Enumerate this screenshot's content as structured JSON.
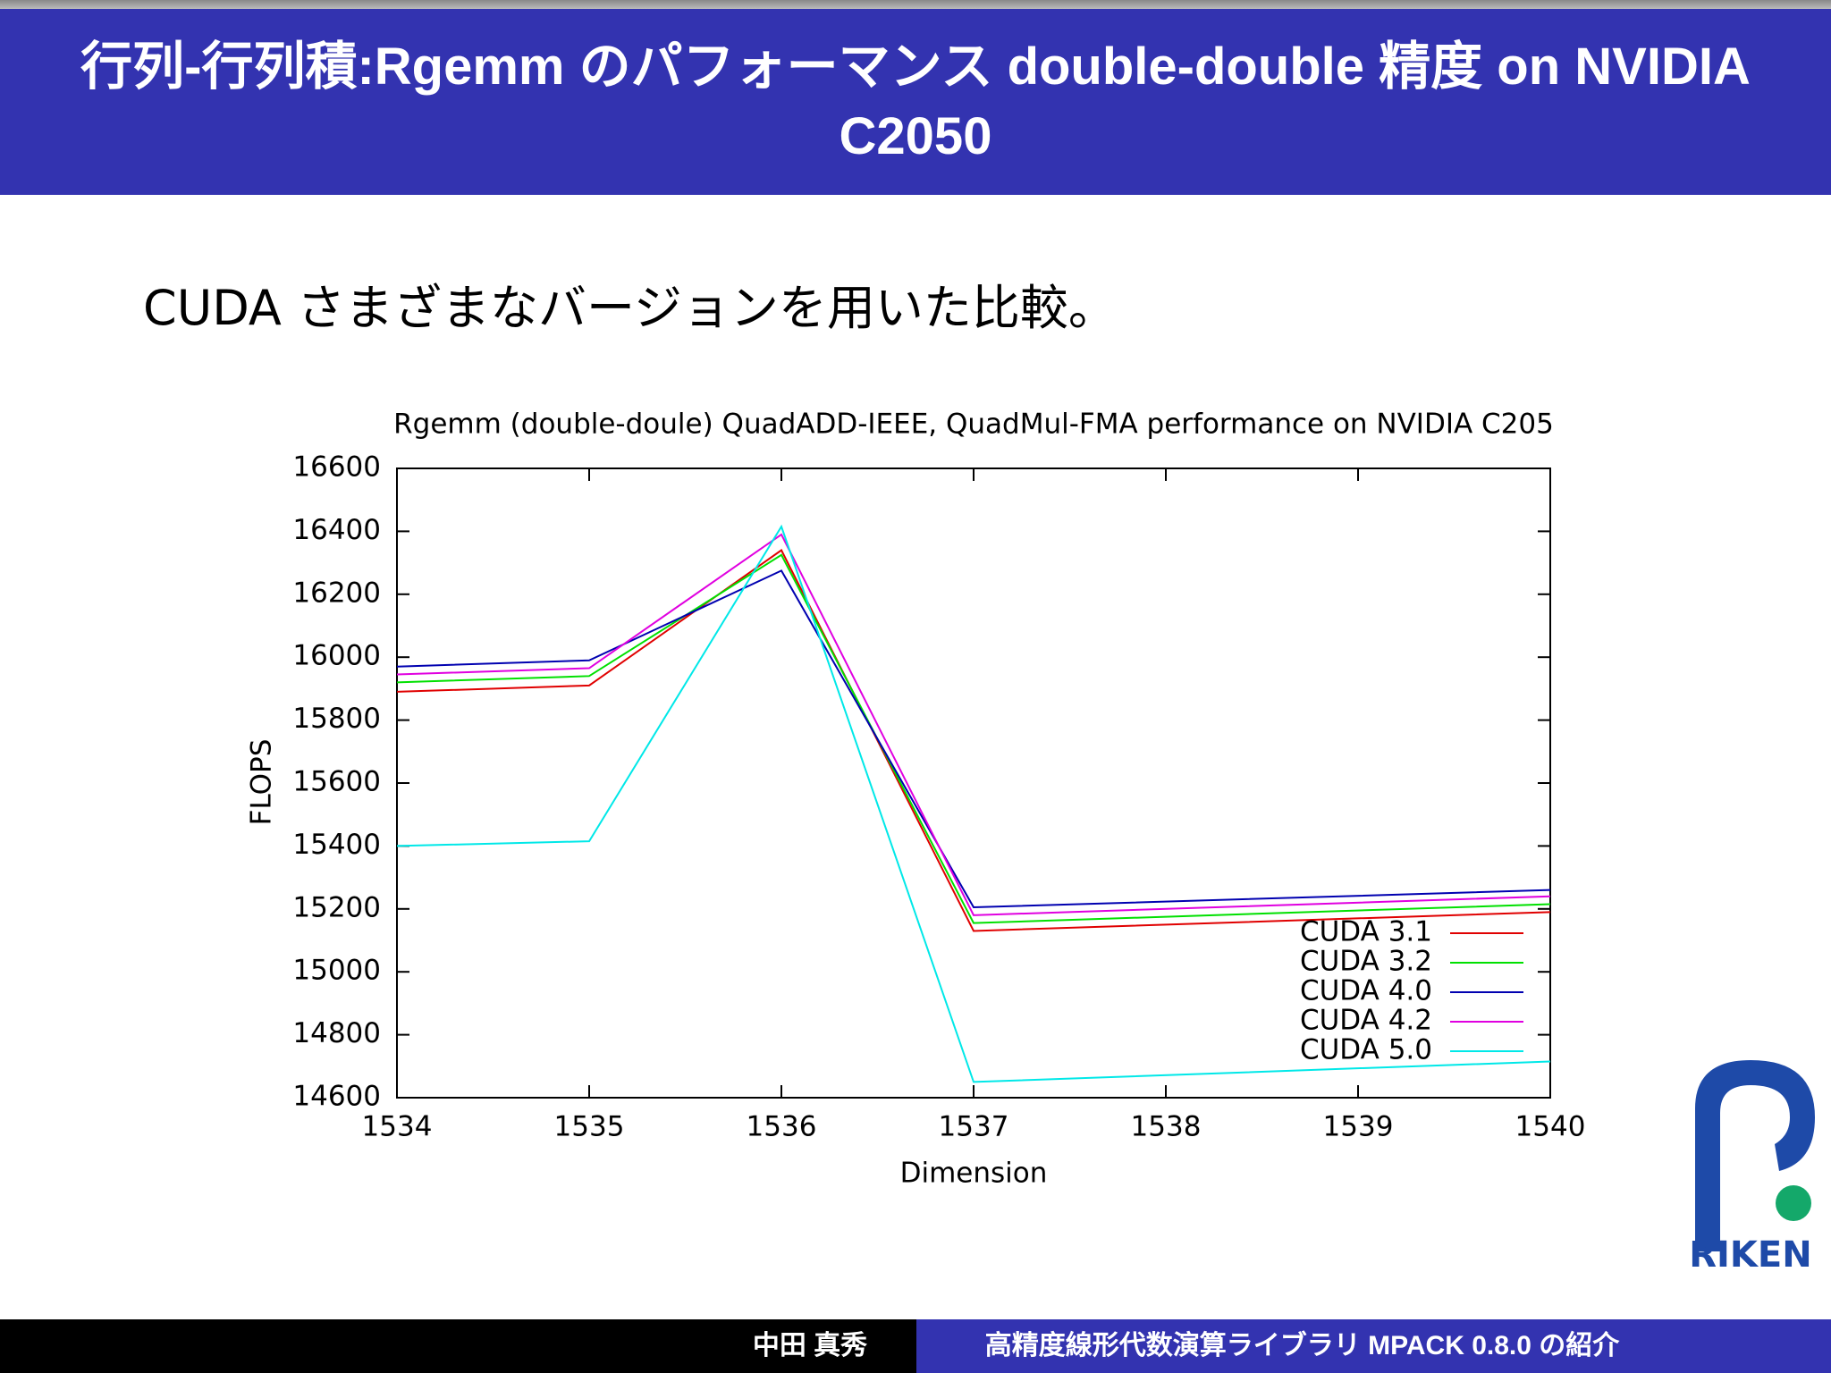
{
  "slide": {
    "title": "行列-行列積:Rgemm のパフォーマンス double-double 精度 on NVIDIA C2050",
    "subtitle": "CUDA さまざまなバージョンを用いた比較。"
  },
  "chart_data": {
    "type": "line",
    "title": "Rgemm (double-doule) QuadADD-IEEE, QuadMul-FMA performance on NVIDIA C205",
    "x_label": "Dimension",
    "y_label": "FLOPS",
    "x": [
      1534,
      1535,
      1536,
      1537,
      1540
    ],
    "series": [
      {
        "name": "CUDA 3.1",
        "color": "#e00000",
        "values": [
          15890,
          15910,
          16340,
          15130,
          15190
        ]
      },
      {
        "name": "CUDA 3.2",
        "color": "#00e000",
        "values": [
          15920,
          15940,
          16325,
          15155,
          15215
        ]
      },
      {
        "name": "CUDA 4.0",
        "color": "#0000b0",
        "values": [
          15970,
          15990,
          16275,
          15205,
          15260
        ]
      },
      {
        "name": "CUDA 4.2",
        "color": "#e000e0",
        "values": [
          15945,
          15965,
          16390,
          15180,
          15240
        ]
      },
      {
        "name": "CUDA 5.0",
        "color": "#00e8e8",
        "values": [
          15400,
          15415,
          16415,
          14650,
          14715
        ]
      }
    ],
    "xlim": [
      1534,
      1540
    ],
    "xticks": [
      1534,
      1535,
      1536,
      1537,
      1538,
      1539,
      1540
    ],
    "ylim": [
      14600,
      16600
    ],
    "yticks": [
      14600,
      14800,
      15000,
      15200,
      15400,
      15600,
      15800,
      16000,
      16200,
      16400,
      16600
    ],
    "grid": false,
    "legend": "lower right"
  },
  "footer": {
    "author": "中田 真秀",
    "talk": "高精度線形代数演算ライブラリ MPACK 0.8.0 の紹介"
  },
  "logo": {
    "text": "RIKEN"
  }
}
